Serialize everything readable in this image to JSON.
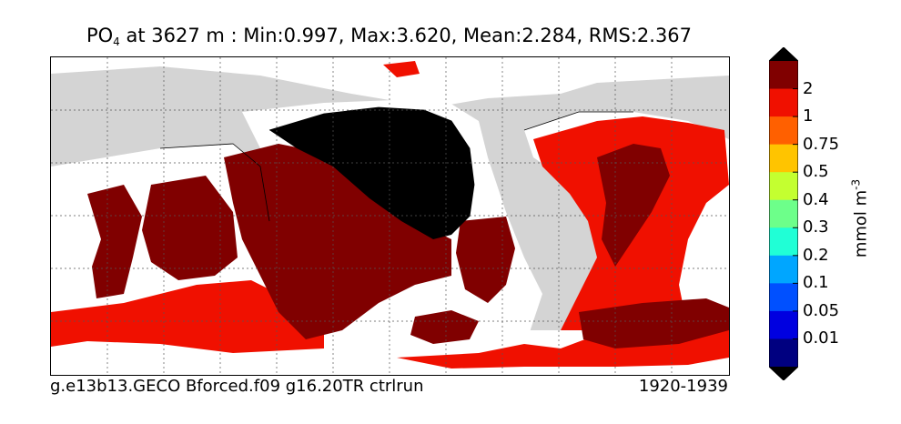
{
  "title": {
    "variable": "PO",
    "variable_sub": "4",
    "text": " at 3627 m : Min:0.997, Max:3.620, Mean:2.284, RMS:2.367"
  },
  "footer": {
    "run_name": "g.e13b13.GECO Bforced.f09 g16.20TR ctrlrun",
    "period": "1920-1939"
  },
  "colorbar": {
    "unit_base": "mmol m",
    "unit_exp": "-3",
    "levels": [
      "0.01",
      "0.05",
      "0.1",
      "0.2",
      "0.3",
      "0.4",
      "0.5",
      "0.75",
      "1",
      "2"
    ],
    "colors": [
      "#000080",
      "#0000e0",
      "#0050ff",
      "#00a6ff",
      "#20ffd6",
      "#6dff8a",
      "#c4ff30",
      "#ffc400",
      "#ff6000",
      "#f01000",
      "#800000"
    ],
    "under_color": "#000000",
    "over_color": "#000000"
  },
  "map": {
    "land_color": "#d4d4d4",
    "nodata_color": "#ffffff",
    "gridlines": "dotted"
  }
}
